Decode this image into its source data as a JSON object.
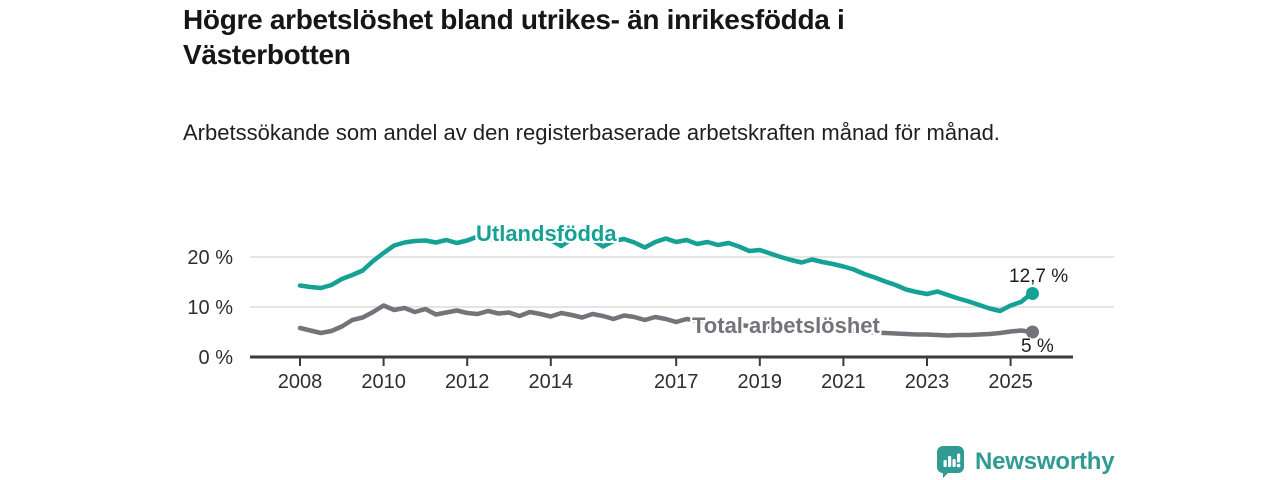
{
  "header": {
    "title": "Högre arbetslöshet bland utrikes- än inrikesfödda i Västerbotten",
    "subtitle": "Arbetssökande som andel av den registerbaserade arbetskraften månad för månad."
  },
  "chart_data": {
    "type": "line",
    "unit": "%",
    "grid": "horizontal-only",
    "legend": "inline-series-labels",
    "xlim": [
      2006.8,
      2026.5
    ],
    "ylim": [
      0,
      27.4
    ],
    "x_ticks": [
      2008,
      2010,
      2012,
      2014,
      2017,
      2019,
      2021,
      2023,
      2025
    ],
    "x_tick_labels": [
      "2008",
      "2010",
      "2012",
      "2014",
      "2017",
      "2019",
      "2021",
      "2023",
      "2025"
    ],
    "y_ticks": [
      0,
      10,
      20
    ],
    "y_tick_labels": [
      "0 %",
      "10 %",
      "20 %"
    ],
    "axis_color": "#3b3b3b",
    "grid_color": "#dcdcdc",
    "x": [
      2008,
      2008.25,
      2008.5,
      2008.75,
      2009,
      2009.25,
      2009.5,
      2009.75,
      2010,
      2010.25,
      2010.5,
      2010.75,
      2011,
      2011.25,
      2011.5,
      2011.75,
      2012,
      2012.25,
      2012.5,
      2012.75,
      2013,
      2013.25,
      2013.5,
      2013.75,
      2014,
      2014.25,
      2014.5,
      2014.75,
      2015,
      2015.25,
      2015.5,
      2015.75,
      2016,
      2016.25,
      2016.5,
      2016.75,
      2017,
      2017.25,
      2017.5,
      2017.75,
      2018,
      2018.25,
      2018.5,
      2018.75,
      2019,
      2019.25,
      2019.5,
      2019.75,
      2020,
      2020.25,
      2020.5,
      2020.75,
      2021,
      2021.25,
      2021.5,
      2021.75,
      2022,
      2022.25,
      2022.5,
      2022.75,
      2023,
      2023.25,
      2023.5,
      2023.75,
      2024,
      2024.25,
      2024.5,
      2024.75,
      2025,
      2025.25,
      2025.5
    ],
    "series": [
      {
        "name": "Utlandsfödda",
        "color": "#16a195",
        "end_value": 12.7,
        "end_label": "12,7 %",
        "values": [
          14.3,
          14.0,
          13.8,
          14.4,
          15.6,
          16.4,
          17.3,
          19.2,
          20.8,
          22.3,
          22.9,
          23.2,
          23.3,
          22.9,
          23.4,
          22.8,
          23.3,
          24.1,
          23.5,
          23.8,
          24.0,
          24.3,
          23.6,
          23.9,
          23.4,
          22.2,
          23.6,
          23.8,
          23.4,
          22.1,
          23.2,
          23.6,
          22.9,
          21.9,
          23.0,
          23.7,
          23.0,
          23.4,
          22.6,
          23.0,
          22.4,
          22.8,
          22.1,
          21.2,
          21.4,
          20.7,
          20.0,
          19.4,
          18.9,
          19.5,
          19.0,
          18.6,
          18.1,
          17.5,
          16.6,
          15.9,
          15.1,
          14.4,
          13.5,
          13.0,
          12.6,
          13.1,
          12.4,
          11.7,
          11.1,
          10.4,
          9.7,
          9.2,
          10.3,
          11.0,
          12.7
        ]
      },
      {
        "name": "Total arbetslöshet",
        "color": "#74737a",
        "end_value": 5.0,
        "end_label": "5 %",
        "values": [
          5.8,
          5.3,
          4.8,
          5.2,
          6.1,
          7.4,
          7.9,
          9.0,
          10.3,
          9.4,
          9.8,
          9.0,
          9.6,
          8.5,
          8.9,
          9.3,
          8.8,
          8.6,
          9.2,
          8.7,
          8.9,
          8.2,
          9.0,
          8.6,
          8.1,
          8.8,
          8.4,
          7.9,
          8.6,
          8.2,
          7.6,
          8.3,
          8.0,
          7.4,
          8.0,
          7.6,
          7.0,
          7.6,
          7.3,
          7.0,
          6.8,
          6.6,
          6.4,
          6.2,
          6.1,
          6.0,
          5.9,
          6.0,
          6.3,
          6.6,
          6.4,
          6.0,
          5.6,
          5.3,
          5.1,
          4.9,
          4.8,
          4.7,
          4.6,
          4.5,
          4.5,
          4.4,
          4.3,
          4.4,
          4.4,
          4.5,
          4.6,
          4.8,
          5.1,
          5.3,
          5.0
        ]
      }
    ]
  },
  "branding": {
    "name": "Newsworthy",
    "color": "#2f9b93"
  }
}
